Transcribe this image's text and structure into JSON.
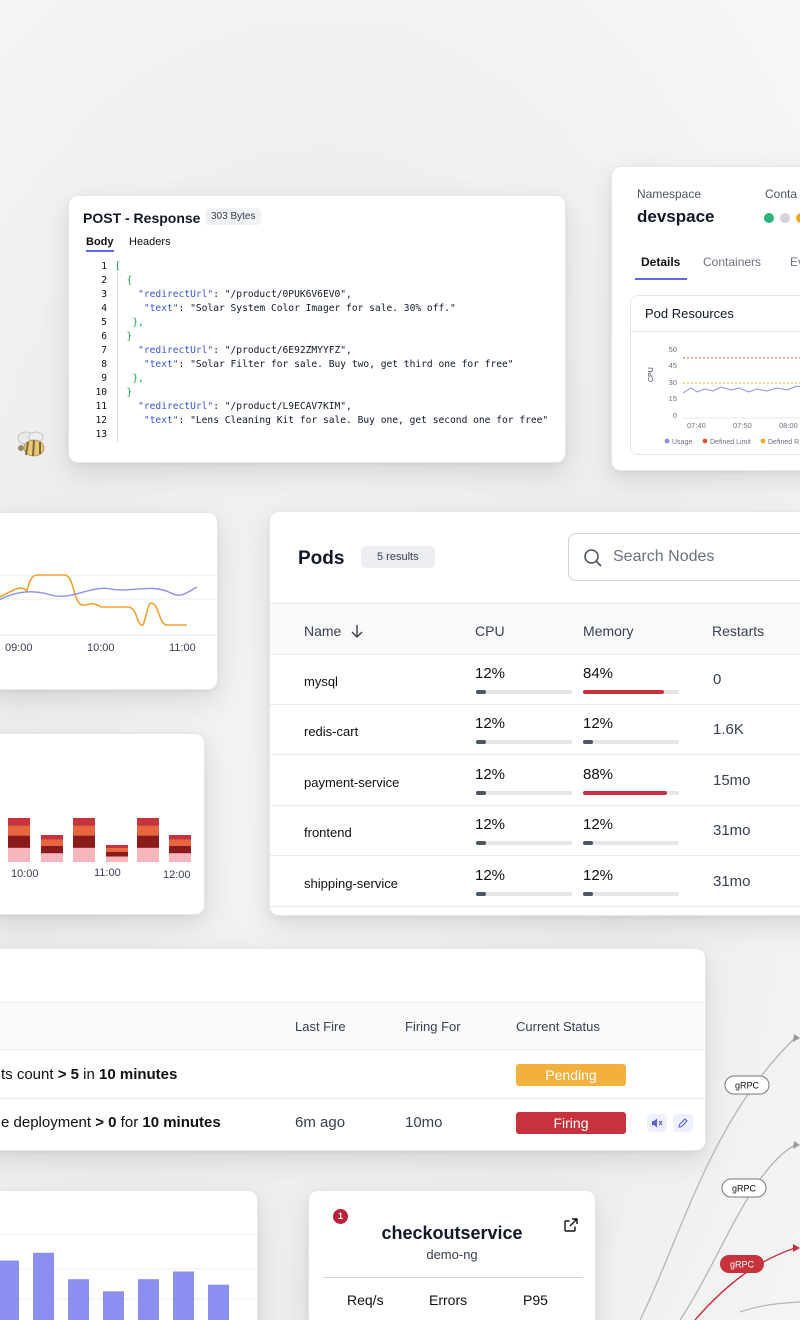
{
  "response": {
    "title": "POST - Response",
    "size": "303 Bytes",
    "tabs": [
      "Body",
      "Headers"
    ],
    "lines": [
      {
        "n": "1",
        "parts": [
          {
            "c": "br",
            "t": "["
          }
        ]
      },
      {
        "n": "2",
        "parts": [
          {
            "c": "br",
            "t": "  {"
          }
        ]
      },
      {
        "n": "3",
        "parts": [
          {
            "c": "key",
            "t": "    \"redirectUrl\""
          },
          {
            "c": "",
            "t": ": \"/product/0PUK6V6EV0\","
          }
        ]
      },
      {
        "n": "4",
        "parts": [
          {
            "c": "key",
            "t": "     \"text\""
          },
          {
            "c": "",
            "t": ": \"Solar System Color Imager for sale. 30% off.\""
          }
        ]
      },
      {
        "n": "5",
        "parts": [
          {
            "c": "br",
            "t": "   },"
          }
        ]
      },
      {
        "n": "6",
        "parts": [
          {
            "c": "br",
            "t": "  }"
          }
        ]
      },
      {
        "n": "7",
        "parts": [
          {
            "c": "key",
            "t": "    \"redirectUrl\""
          },
          {
            "c": "",
            "t": ": \"/product/6E92ZMYYFZ\","
          }
        ]
      },
      {
        "n": "8",
        "parts": [
          {
            "c": "key",
            "t": "     \"text\""
          },
          {
            "c": "",
            "t": ": \"Solar Filter for sale. Buy two, get third one for free\""
          }
        ]
      },
      {
        "n": "9",
        "parts": [
          {
            "c": "br",
            "t": "   },"
          }
        ]
      },
      {
        "n": "10",
        "parts": [
          {
            "c": "br",
            "t": "  }"
          }
        ]
      },
      {
        "n": "11",
        "parts": [
          {
            "c": "key",
            "t": "    \"redirectUrl\""
          },
          {
            "c": "",
            "t": ": \"/product/L9ECAV7KIM\","
          }
        ]
      },
      {
        "n": "12",
        "parts": [
          {
            "c": "key",
            "t": "     \"text\""
          },
          {
            "c": "",
            "t": ": \"Lens Cleaning Kit for sale. Buy one, get second one for free\""
          }
        ]
      }
    ],
    "line_numbers": [
      "1",
      "2",
      "3",
      "4",
      "5",
      "6",
      "7",
      "8",
      "9",
      "10",
      "11",
      "12",
      "13"
    ]
  },
  "namespace": {
    "label": "Namespace",
    "value": "devspace",
    "containers_label": "Conta",
    "dot_colors": [
      "#2bb673",
      "#d1d5db",
      "#f5a623"
    ],
    "tabs": [
      "Details",
      "Containers",
      "Ev"
    ],
    "panel_title": "Pod Resources",
    "chart": {
      "ylabel": "CPU",
      "yticks": [
        "50",
        "45",
        "30",
        "15",
        "0"
      ],
      "xticks": [
        "07:40",
        "07:50",
        "08:00"
      ],
      "legend": [
        "Usage",
        "Defined Limit",
        "Defined R"
      ],
      "colors": {
        "usage": "#8b8ff0",
        "limit": "#e4572e",
        "request": "#f5a623"
      }
    }
  },
  "line_chart": {
    "xticks": [
      "09:00",
      "10:00",
      "11:00"
    ],
    "colors": {
      "a": "#f0a22e",
      "b": "#8b8ff0"
    }
  },
  "stack_chart": {
    "xticks": [
      "10:00",
      "11:00",
      "12:00"
    ],
    "colors": [
      "#8b1a1a",
      "#c8323d",
      "#e8663d",
      "#f5b7bd"
    ]
  },
  "pods": {
    "title": "Pods",
    "badge": "5 results",
    "search_placeholder": "Search Nodes",
    "columns": [
      "Name",
      "CPU",
      "Memory",
      "Restarts"
    ],
    "rows": [
      {
        "name": "mysql",
        "cpu": "12%",
        "mem": "84%",
        "restarts": "0",
        "cpu_frac": 0.12,
        "mem_frac": 0.84
      },
      {
        "name": "redis-cart",
        "cpu": "12%",
        "mem": "12%",
        "restarts": "1.6K",
        "cpu_frac": 0.12,
        "mem_frac": 0.12
      },
      {
        "name": "payment-service",
        "cpu": "12%",
        "mem": "88%",
        "restarts": "15mo",
        "cpu_frac": 0.12,
        "mem_frac": 0.88
      },
      {
        "name": "frontend",
        "cpu": "12%",
        "mem": "12%",
        "restarts": "31mo",
        "cpu_frac": 0.12,
        "mem_frac": 0.12
      },
      {
        "name": "shipping-service",
        "cpu": "12%",
        "mem": "12%",
        "restarts": "31mo",
        "cpu_frac": 0.12,
        "mem_frac": 0.12
      }
    ],
    "colors": {
      "low": "#4b5563",
      "high": "#c8323d"
    }
  },
  "alerts": {
    "columns": [
      "Last Fire",
      "Firing For",
      "Current Status"
    ],
    "rows": [
      {
        "rule_pre": "ts count ",
        "rule_b1": "> 5",
        "rule_mid": " in ",
        "rule_b2": "10 minutes",
        "last": "",
        "for": "",
        "status": "Pending",
        "status_color": "#f2b13f"
      },
      {
        "rule_pre": "e deployment ",
        "rule_b1": "> 0",
        "rule_mid": " for ",
        "rule_b2": "10 minutes",
        "last": "6m ago",
        "for": "10mo",
        "status": "Firing",
        "status_color": "#c8323d"
      }
    ]
  },
  "bar_chart": {
    "values": [
      55,
      62,
      38,
      27,
      38,
      45,
      33
    ],
    "color": "#8b8ff0"
  },
  "service": {
    "badge": "1",
    "name": "checkoutservice",
    "namespace": "demo-ng",
    "columns": [
      "Req/s",
      "Errors",
      "P95"
    ]
  },
  "flow": {
    "labels": [
      "gRPC",
      "gRPC",
      "gRPC"
    ],
    "line_color": "#b5b5b5",
    "error_color": "#c8323d"
  }
}
